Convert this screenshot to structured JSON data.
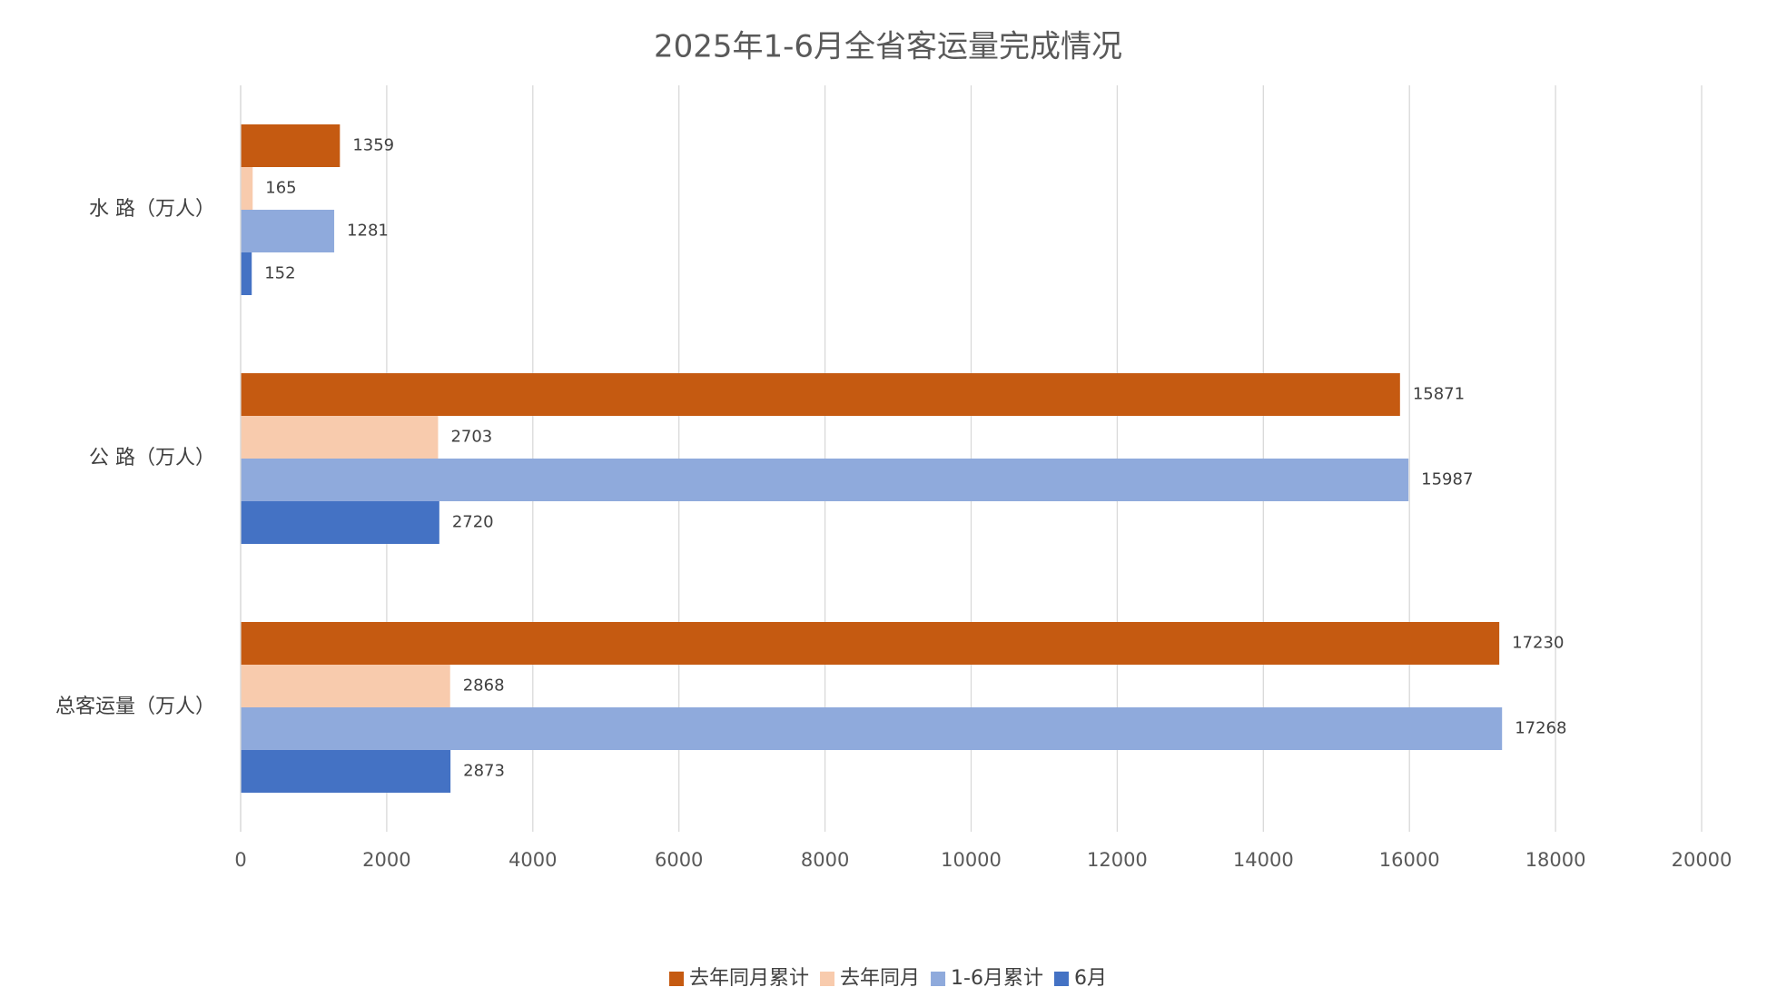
{
  "chart_data": {
    "type": "bar",
    "orientation": "horizontal",
    "title": "2025年1-6月全省客运量完成情况",
    "categories": [
      "水 路（万人）",
      "公 路（万人）",
      "总客运量（万人）"
    ],
    "series": [
      {
        "name": "去年同月累计",
        "color": "#c55a11",
        "values": [
          1359,
          15871,
          17230
        ]
      },
      {
        "name": "去年同月",
        "color": "#f8cbad",
        "values": [
          165,
          2703,
          2868
        ]
      },
      {
        "name": "1-6月累计",
        "color": "#8faadc",
        "values": [
          1281,
          15987,
          17268
        ]
      },
      {
        "name": "6月",
        "color": "#4472c4",
        "values": [
          152,
          2720,
          2873
        ]
      }
    ],
    "xlim": [
      0,
      20000
    ],
    "xticks": [
      0,
      2000,
      4000,
      6000,
      8000,
      10000,
      12000,
      14000,
      16000,
      18000,
      20000
    ],
    "grid": true,
    "legend": "bottom"
  }
}
